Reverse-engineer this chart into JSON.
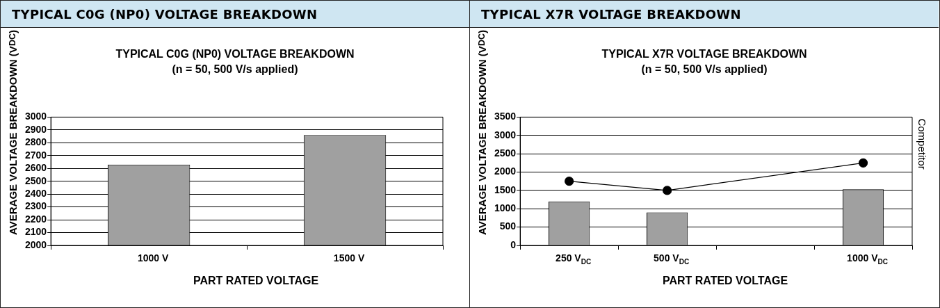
{
  "chart_data": [
    {
      "type": "bar",
      "title": "TYPICAL C0G (NP0) VOLTAGE BREAKDOWN",
      "subtitle": "TYPICAL C0G (NP0) VOLTAGE BREAKDOWN\n(n = 50, 500 V/s applied)",
      "xlabel": "PART RATED VOLTAGE",
      "ylabel": "AVERAGE VOLTAGE BREAKDOWN (V$_{DC}$)",
      "categories": [
        "1000 V",
        "1500 V"
      ],
      "series": [
        {
          "color": "#a0a0a0",
          "values": [
            2630,
            2860
          ]
        }
      ],
      "ylim": [
        2000,
        3000
      ],
      "yticks": [
        2000,
        2100,
        2200,
        2300,
        2400,
        2500,
        2600,
        2700,
        2800,
        2900,
        3000
      ],
      "grid": "y"
    },
    {
      "type": "bar",
      "title": "TYPICAL X7R VOLTAGE BREAKDOWN",
      "subtitle": "TYPICAL X7R VOLTAGE BREAKDOWN\n(n = 50, 500 V/s applied)",
      "xlabel": "PART RATED VOLTAGE",
      "ylabel": "AVERAGE  VOLTAGE BREAKDOWN (V$_{DC}$)",
      "categories": [
        "250 V$_{DC}$",
        "500 V$_{DC}$",
        null,
        "1000 V$_{DC}$"
      ],
      "series": [
        {
          "color": "#a0a0a0",
          "values": [
            1200,
            900,
            null,
            1530
          ]
        },
        {
          "name": "Competitor",
          "type": "line",
          "color": "#000000",
          "values": [
            1750,
            1500,
            null,
            2250
          ]
        }
      ],
      "ylim": [
        0,
        3500
      ],
      "yticks": [
        0,
        500,
        1000,
        1500,
        2000,
        2500,
        3000,
        3500
      ],
      "grid": "y",
      "marker": "circle"
    }
  ]
}
